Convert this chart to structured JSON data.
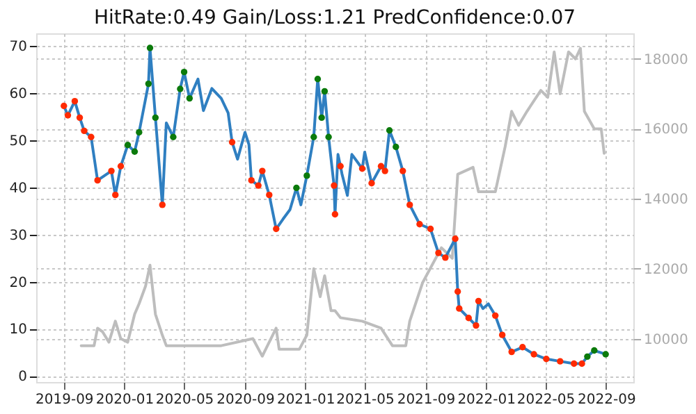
{
  "chart_data": {
    "type": "line",
    "title": "HitRate:0.49 Gain/Loss:1.21 PredConfidence:0.07",
    "xlim": [
      "2019-07-07",
      "2022-10-26"
    ],
    "xticks": [
      "2019-09",
      "2020-01",
      "2020-05",
      "2020-09",
      "2021-01",
      "2021-05",
      "2021-09",
      "2022-01",
      "2022-05",
      "2022-09"
    ],
    "ylim": [
      -1.3,
      72.7
    ],
    "yticks": [
      0,
      10,
      20,
      30,
      40,
      50,
      60,
      70
    ],
    "y2lim": [
      8760,
      18730
    ],
    "y2ticks": [
      10000,
      12000,
      14000,
      16000,
      18000
    ],
    "grid": true,
    "line_style": "solid",
    "series": [
      {
        "axis": "y2",
        "color": "#bdbdbd",
        "x": [
          "2019-10-06",
          "2019-11-01",
          "2019-11-08",
          "2019-11-18",
          "2019-12-01",
          "2019-12-14",
          "2019-12-25",
          "2020-01-08",
          "2020-01-22",
          "2020-01-31",
          "2020-02-13",
          "2020-02-22",
          "2020-03-04",
          "2020-03-18",
          "2020-03-26",
          "2020-05-01",
          "2020-07-15",
          "2020-09-17",
          "2020-10-06",
          "2020-11-03",
          "2020-11-09",
          "2020-12-20",
          "2021-01-04",
          "2021-01-18",
          "2021-01-31",
          "2021-02-09",
          "2021-02-22",
          "2021-03-02",
          "2021-03-13",
          "2021-04-26",
          "2021-06-03",
          "2021-06-26",
          "2021-07-23",
          "2021-07-31",
          "2021-08-26",
          "2021-10-03",
          "2021-10-25",
          "2021-11-05",
          "2021-12-06",
          "2021-12-17",
          "2022-01-20",
          "2022-02-09",
          "2022-02-22",
          "2022-03-08",
          "2022-03-25",
          "2022-04-22",
          "2022-05-06",
          "2022-05-19",
          "2022-05-31",
          "2022-06-17",
          "2022-07-01",
          "2022-07-11",
          "2022-07-19",
          "2022-08-08",
          "2022-08-22",
          "2022-08-28"
        ],
        "values": [
          9800,
          9800,
          10300,
          10200,
          9900,
          10500,
          10000,
          9900,
          10700,
          11000,
          11500,
          12100,
          10700,
          10100,
          9800,
          9800,
          9800,
          10000,
          9500,
          10300,
          9700,
          9700,
          10100,
          12000,
          11200,
          11800,
          10800,
          10800,
          10600,
          10500,
          10300,
          9800,
          9800,
          10500,
          11600,
          12600,
          12300,
          14700,
          14900,
          14200,
          14200,
          15500,
          16500,
          16100,
          16500,
          17100,
          16900,
          18200,
          17000,
          18200,
          18000,
          18300,
          16500,
          16000,
          16000,
          15300
        ]
      },
      {
        "color": "#2f7fc1",
        "x": [
          "2019-09-01",
          "2019-09-09",
          "2019-09-23",
          "2019-10-03",
          "2019-10-12",
          "2019-10-26",
          "2019-11-08",
          "2019-12-06",
          "2019-12-14",
          "2019-12-25",
          "2020-01-08",
          "2020-01-22",
          "2020-01-31",
          "2020-02-19",
          "2020-02-22",
          "2020-03-04",
          "2020-03-18",
          "2020-03-26",
          "2020-04-09",
          "2020-04-23",
          "2020-05-01",
          "2020-05-12",
          "2020-05-29",
          "2020-06-09",
          "2020-06-26",
          "2020-07-15",
          "2020-07-29",
          "2020-08-06",
          "2020-08-17",
          "2020-09-01",
          "2020-09-09",
          "2020-09-14",
          "2020-09-28",
          "2020-10-06",
          "2020-10-20",
          "2020-11-03",
          "2020-11-17",
          "2020-12-01",
          "2020-12-14",
          "2020-12-23",
          "2021-01-04",
          "2021-01-18",
          "2021-01-26",
          "2021-02-03",
          "2021-02-09",
          "2021-02-17",
          "2021-02-28",
          "2021-03-02",
          "2021-03-08",
          "2021-03-13",
          "2021-03-16",
          "2021-03-27",
          "2021-04-05",
          "2021-04-26",
          "2021-05-01",
          "2021-05-15",
          "2021-06-03",
          "2021-06-11",
          "2021-06-20",
          "2021-07-03",
          "2021-07-17",
          "2021-07-31",
          "2021-08-20",
          "2021-09-11",
          "2021-09-27",
          "2021-10-11",
          "2021-10-31",
          "2021-11-05",
          "2021-11-08",
          "2021-11-27",
          "2021-12-12",
          "2021-12-17",
          "2021-12-26",
          "2022-01-06",
          "2022-01-20",
          "2022-02-03",
          "2022-02-22",
          "2022-03-16",
          "2022-04-08",
          "2022-05-03",
          "2022-05-31",
          "2022-06-28",
          "2022-07-14",
          "2022-07-25",
          "2022-08-08",
          "2022-08-31"
        ],
        "values": [
          57.3,
          55.3,
          58.3,
          54.8,
          52,
          50.7,
          41.5,
          43.5,
          38.4,
          44.5,
          49,
          47.6,
          51.7,
          62,
          69.6,
          54.8,
          36.3,
          53.7,
          50.7,
          60.9,
          64.5,
          58.9,
          63,
          56.3,
          61,
          58.9,
          55.8,
          49.6,
          46,
          51.7,
          49.1,
          41.5,
          40.4,
          43.5,
          38.4,
          31.2,
          33.3,
          35.3,
          39.9,
          36.3,
          42.5,
          50.7,
          63,
          54.8,
          60.4,
          50.7,
          40.4,
          34.3,
          47,
          44.5,
          42.9,
          38.3,
          47,
          44,
          47.5,
          40.9,
          44.5,
          43.5,
          52.1,
          48.6,
          43.5,
          36.3,
          32.2,
          31.2,
          26.1,
          25.1,
          29.1,
          17.9,
          14.3,
          12.3,
          10.7,
          15.9,
          14.3,
          15.3,
          12.8,
          8.7,
          5.1,
          6.1,
          4.6,
          3.6,
          3.1,
          2.6,
          2.6,
          4.1,
          5.4,
          4.6
        ]
      },
      {
        "type": "scatter",
        "color": "#ff2a00",
        "x": [
          "2019-09-01",
          "2019-09-09",
          "2019-09-23",
          "2019-10-03",
          "2019-10-12",
          "2019-10-26",
          "2019-11-08",
          "2019-12-06",
          "2019-12-14",
          "2019-12-25",
          "2020-03-18",
          "2020-08-06",
          "2020-09-14",
          "2020-09-28",
          "2020-10-06",
          "2020-10-20",
          "2020-11-03",
          "2021-02-28",
          "2021-03-02",
          "2021-03-13",
          "2021-04-26",
          "2021-05-15",
          "2021-06-03",
          "2021-06-11",
          "2021-07-17",
          "2021-07-31",
          "2021-08-20",
          "2021-09-11",
          "2021-09-27",
          "2021-10-11",
          "2021-10-31",
          "2021-11-05",
          "2021-11-08",
          "2021-11-27",
          "2021-12-12",
          "2021-12-17",
          "2022-01-20",
          "2022-02-03",
          "2022-02-22",
          "2022-03-16",
          "2022-04-08",
          "2022-05-03",
          "2022-05-31",
          "2022-06-28",
          "2022-07-14"
        ],
        "values": [
          57.3,
          55.3,
          58.3,
          54.8,
          52,
          50.7,
          41.5,
          43.5,
          38.4,
          44.5,
          36.3,
          49.6,
          41.5,
          40.4,
          43.5,
          38.4,
          31.2,
          40.4,
          34.3,
          44.5,
          44,
          40.9,
          44.5,
          43.5,
          43.5,
          36.3,
          32.2,
          31.2,
          26.1,
          25.1,
          29.1,
          17.9,
          14.3,
          12.3,
          10.7,
          15.9,
          12.8,
          8.7,
          5.1,
          6.1,
          4.6,
          3.6,
          3.1,
          2.6,
          2.6
        ]
      },
      {
        "type": "scatter",
        "color": "#0b7a0b",
        "x": [
          "2020-01-08",
          "2020-01-22",
          "2020-01-31",
          "2020-02-19",
          "2020-02-22",
          "2020-03-04",
          "2020-04-09",
          "2020-04-23",
          "2020-05-01",
          "2020-05-12",
          "2020-12-14",
          "2021-01-04",
          "2021-01-18",
          "2021-01-26",
          "2021-02-03",
          "2021-02-09",
          "2021-02-17",
          "2021-06-20",
          "2021-07-03",
          "2022-07-25",
          "2022-08-08",
          "2022-08-31"
        ],
        "values": [
          49,
          47.6,
          51.7,
          62,
          69.6,
          54.8,
          50.7,
          60.9,
          64.5,
          58.9,
          39.9,
          42.5,
          50.7,
          63,
          54.8,
          60.4,
          50.7,
          52.1,
          48.6,
          4.1,
          5.4,
          4.6
        ]
      }
    ]
  }
}
